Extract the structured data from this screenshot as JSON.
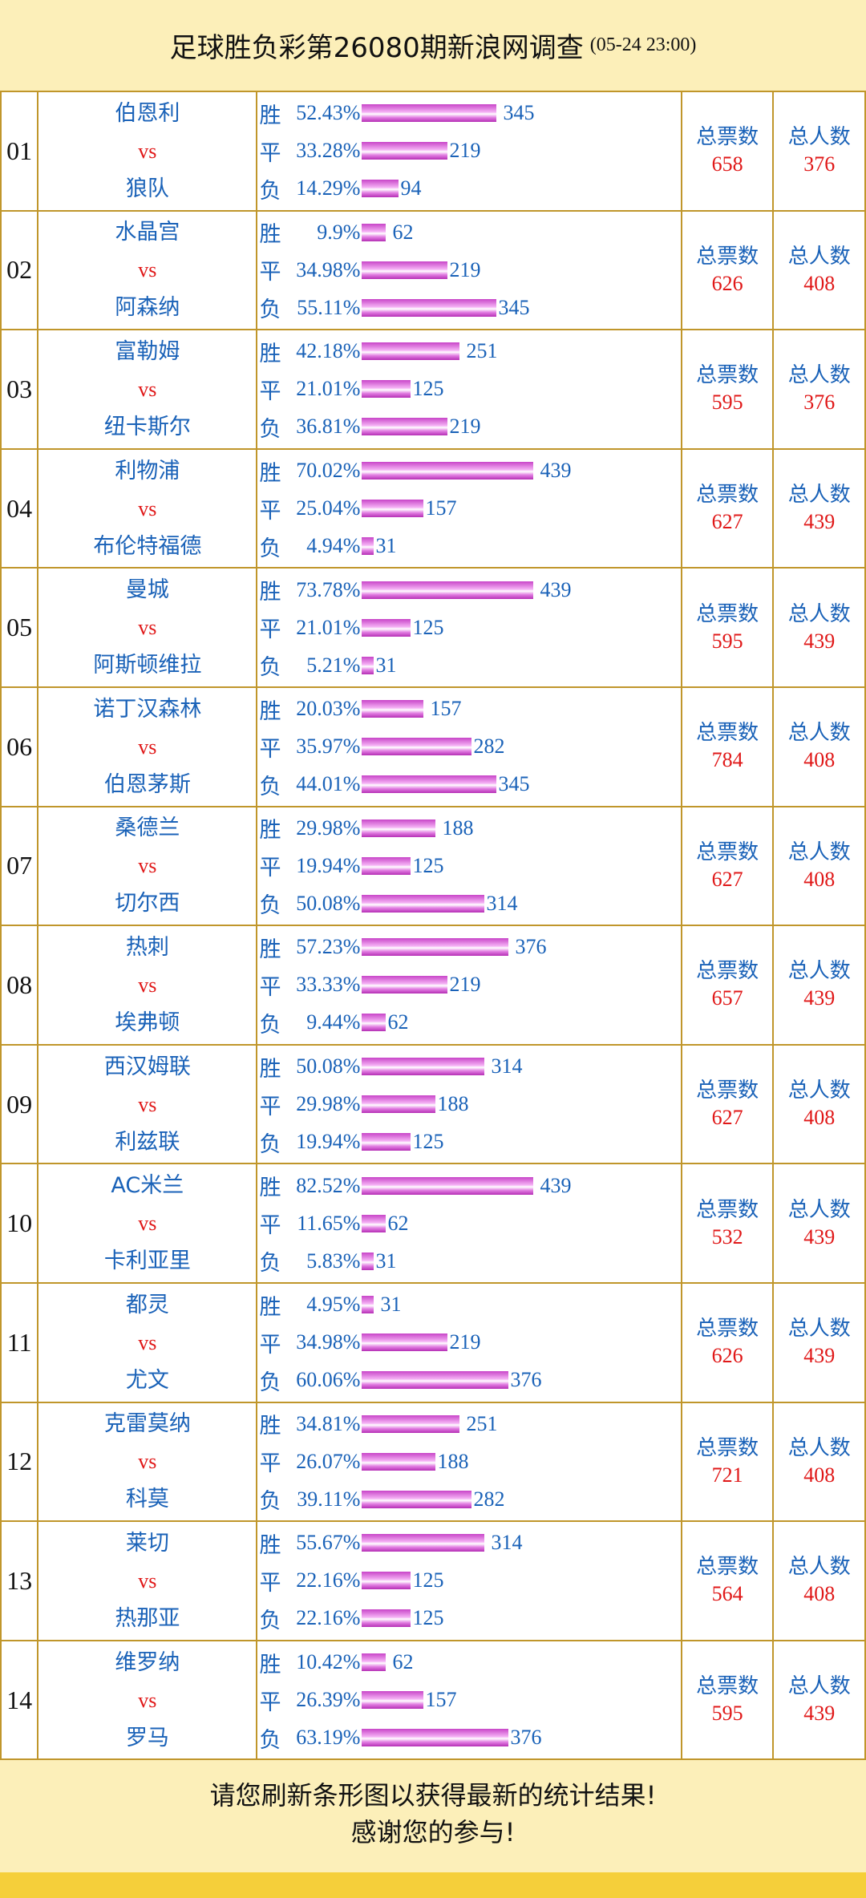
{
  "header": {
    "title": "足球胜负彩第26080期新浪网调查",
    "date": "(05-24 23:00)"
  },
  "labels": {
    "vs": "vs",
    "win": "胜",
    "draw": "平",
    "loss": "负",
    "total_votes": "总票数",
    "total_people": "总人数"
  },
  "matches": [
    {
      "no": "01",
      "home": "伯恩利",
      "away": "狼队",
      "win_pct": "52.43%",
      "win": 345,
      "draw_pct": "33.28%",
      "draw": 219,
      "loss_pct": "14.29%",
      "loss": 94,
      "total_votes": "658",
      "total_people": "376"
    },
    {
      "no": "02",
      "home": "水晶宫",
      "away": "阿森纳",
      "win_pct": "9.9%",
      "win": 62,
      "draw_pct": "34.98%",
      "draw": 219,
      "loss_pct": "55.11%",
      "loss": 345,
      "total_votes": "626",
      "total_people": "408"
    },
    {
      "no": "03",
      "home": "富勒姆",
      "away": "纽卡斯尔",
      "win_pct": "42.18%",
      "win": 251,
      "draw_pct": "21.01%",
      "draw": 125,
      "loss_pct": "36.81%",
      "loss": 219,
      "total_votes": "595",
      "total_people": "376"
    },
    {
      "no": "04",
      "home": "利物浦",
      "away": "布伦特福德",
      "win_pct": "70.02%",
      "win": 439,
      "draw_pct": "25.04%",
      "draw": 157,
      "loss_pct": "4.94%",
      "loss": 31,
      "total_votes": "627",
      "total_people": "439"
    },
    {
      "no": "05",
      "home": "曼城",
      "away": "阿斯顿维拉",
      "win_pct": "73.78%",
      "win": 439,
      "draw_pct": "21.01%",
      "draw": 125,
      "loss_pct": "5.21%",
      "loss": 31,
      "total_votes": "595",
      "total_people": "439"
    },
    {
      "no": "06",
      "home": "诺丁汉森林",
      "away": "伯恩茅斯",
      "win_pct": "20.03%",
      "win": 157,
      "draw_pct": "35.97%",
      "draw": 282,
      "loss_pct": "44.01%",
      "loss": 345,
      "total_votes": "784",
      "total_people": "408"
    },
    {
      "no": "07",
      "home": "桑德兰",
      "away": "切尔西",
      "win_pct": "29.98%",
      "win": 188,
      "draw_pct": "19.94%",
      "draw": 125,
      "loss_pct": "50.08%",
      "loss": 314,
      "total_votes": "627",
      "total_people": "408"
    },
    {
      "no": "08",
      "home": "热刺",
      "away": "埃弗顿",
      "win_pct": "57.23%",
      "win": 376,
      "draw_pct": "33.33%",
      "draw": 219,
      "loss_pct": "9.44%",
      "loss": 62,
      "total_votes": "657",
      "total_people": "439"
    },
    {
      "no": "09",
      "home": "西汉姆联",
      "away": "利兹联",
      "win_pct": "50.08%",
      "win": 314,
      "draw_pct": "29.98%",
      "draw": 188,
      "loss_pct": "19.94%",
      "loss": 125,
      "total_votes": "627",
      "total_people": "408"
    },
    {
      "no": "10",
      "home": "AC米兰",
      "away": "卡利亚里",
      "win_pct": "82.52%",
      "win": 439,
      "draw_pct": "11.65%",
      "draw": 62,
      "loss_pct": "5.83%",
      "loss": 31,
      "total_votes": "532",
      "total_people": "439"
    },
    {
      "no": "11",
      "home": "都灵",
      "away": "尤文",
      "win_pct": "4.95%",
      "win": 31,
      "draw_pct": "34.98%",
      "draw": 219,
      "loss_pct": "60.06%",
      "loss": 376,
      "total_votes": "626",
      "total_people": "439"
    },
    {
      "no": "12",
      "home": "克雷莫纳",
      "away": "科莫",
      "win_pct": "34.81%",
      "win": 251,
      "draw_pct": "26.07%",
      "draw": 188,
      "loss_pct": "39.11%",
      "loss": 282,
      "total_votes": "721",
      "total_people": "408"
    },
    {
      "no": "13",
      "home": "莱切",
      "away": "热那亚",
      "win_pct": "55.67%",
      "win": 314,
      "draw_pct": "22.16%",
      "draw": 125,
      "loss_pct": "22.16%",
      "loss": 125,
      "total_votes": "564",
      "total_people": "408"
    },
    {
      "no": "14",
      "home": "维罗纳",
      "away": "罗马",
      "win_pct": "10.42%",
      "win": 62,
      "draw_pct": "26.39%",
      "draw": 157,
      "loss_pct": "63.19%",
      "loss": 376,
      "total_votes": "595",
      "total_people": "439"
    }
  ],
  "footer": {
    "line1": "请您刷新条形图以获得最新的统计结果!",
    "line2": "感谢您的参与!"
  },
  "colors": {
    "background": "#fcefb9",
    "border": "#c0962b",
    "blue_text": "#1a62b8",
    "red_text": "#e01818",
    "bar": "#d060d0",
    "bottom_bar": "#f5cf3a"
  }
}
